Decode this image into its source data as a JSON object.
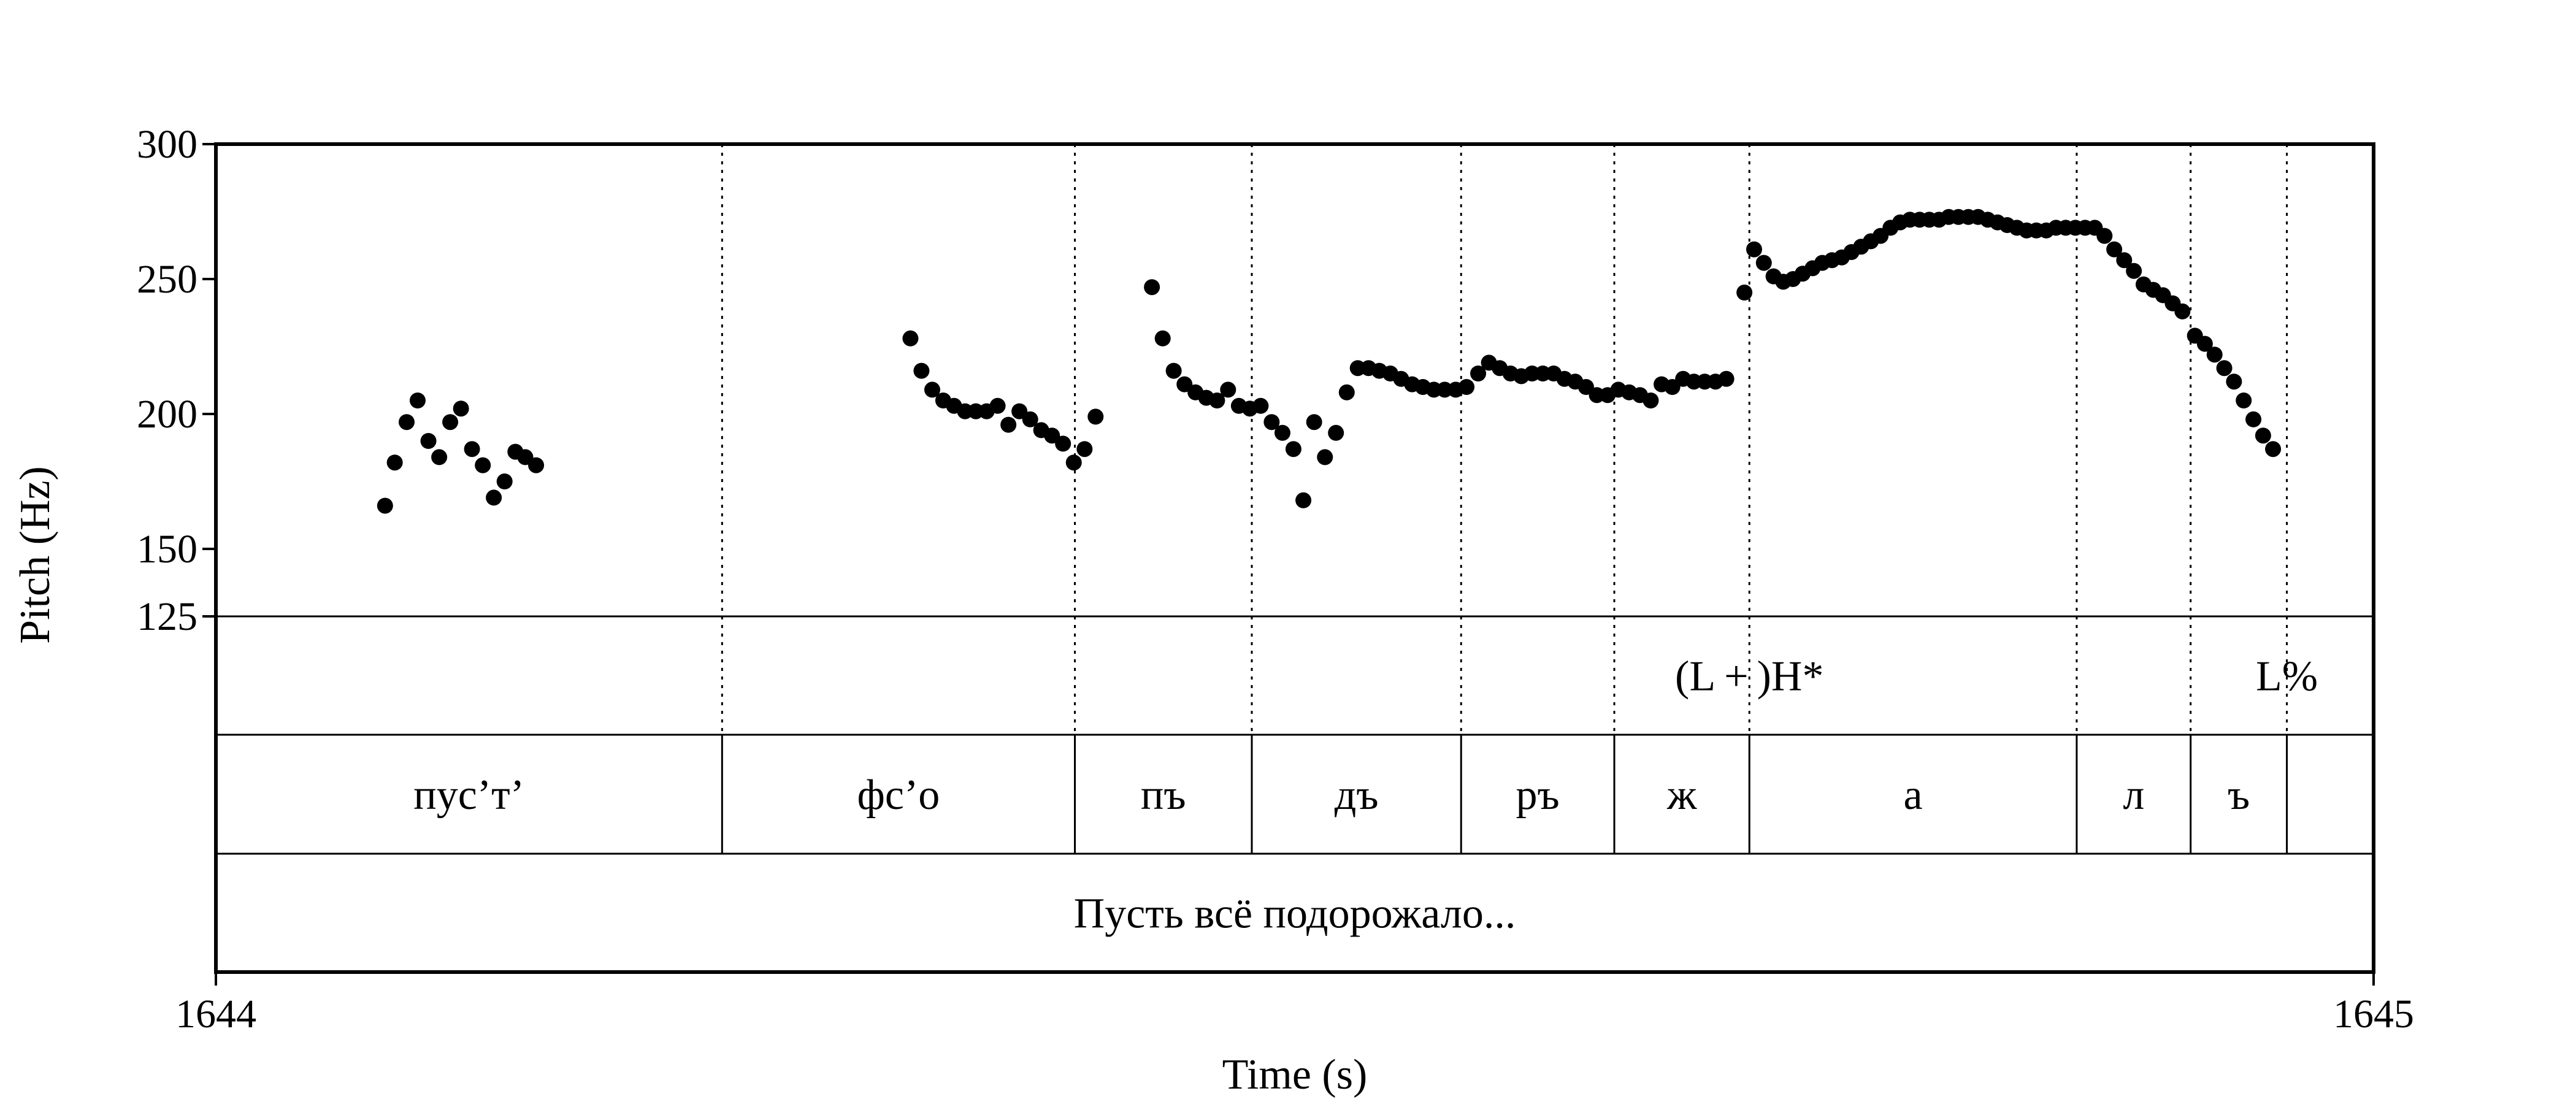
{
  "chart_data": {
    "type": "scatter",
    "title": "",
    "xlabel": "Time (s)",
    "ylabel": "Pitch (Hz)",
    "xlim": [
      1644,
      1645
    ],
    "ylim": [
      125,
      300
    ],
    "x_ticks": [
      {
        "value": 1644,
        "label": "1644"
      },
      {
        "value": 1645,
        "label": "1645"
      }
    ],
    "y_ticks": [
      {
        "value": 300,
        "label": "300"
      },
      {
        "value": 250,
        "label": "250"
      },
      {
        "value": 200,
        "label": "200"
      },
      {
        "value": 150,
        "label": "150"
      },
      {
        "value": 125,
        "label": "125"
      }
    ],
    "grid": false,
    "legend": "none",
    "boundaries": [
      1644.2346,
      1644.3981,
      1644.4801,
      1644.5771,
      1644.6481,
      1644.7107,
      1644.8624,
      1644.9152,
      1644.9598
    ],
    "series": [
      {
        "points": [
          [
            1644.0784,
            166
          ],
          [
            1644.0829,
            182
          ],
          [
            1644.0884,
            197
          ],
          [
            1644.0935,
            205
          ],
          [
            1644.0985,
            190
          ],
          [
            1644.1035,
            184
          ],
          [
            1644.1086,
            197
          ],
          [
            1644.1136,
            202
          ],
          [
            1644.1187,
            187
          ],
          [
            1644.1237,
            181
          ],
          [
            1644.1288,
            169
          ],
          [
            1644.1338,
            175
          ],
          [
            1644.1388,
            186
          ],
          [
            1644.1434,
            184
          ],
          [
            1644.1484,
            181
          ],
          [
            1644.3219,
            228
          ],
          [
            1644.327,
            216
          ],
          [
            1644.332,
            209
          ],
          [
            1644.3371,
            205
          ],
          [
            1644.3421,
            203
          ],
          [
            1644.3472,
            201
          ],
          [
            1644.3522,
            201
          ],
          [
            1644.3572,
            201
          ],
          [
            1644.3623,
            203
          ],
          [
            1644.3673,
            196
          ],
          [
            1644.3724,
            201
          ],
          [
            1644.3774,
            198
          ],
          [
            1644.3825,
            194
          ],
          [
            1644.3875,
            192
          ],
          [
            1644.3926,
            189
          ],
          [
            1644.3976,
            182
          ],
          [
            1644.4026,
            187
          ],
          [
            1644.4077,
            199
          ],
          [
            1644.4338,
            247
          ],
          [
            1644.4388,
            228
          ],
          [
            1644.4439,
            216
          ],
          [
            1644.4489,
            211
          ],
          [
            1644.454,
            208
          ],
          [
            1644.459,
            206
          ],
          [
            1644.464,
            205
          ],
          [
            1644.4691,
            209
          ],
          [
            1644.4741,
            203
          ],
          [
            1644.4792,
            202
          ],
          [
            1644.4842,
            203
          ],
          [
            1644.4893,
            197
          ],
          [
            1644.4943,
            193
          ],
          [
            1644.4994,
            187
          ],
          [
            1644.504,
            168
          ],
          [
            1644.509,
            197
          ],
          [
            1644.514,
            184
          ],
          [
            1644.5191,
            193
          ],
          [
            1644.5241,
            208
          ],
          [
            1644.5292,
            217
          ],
          [
            1644.5342,
            217
          ],
          [
            1644.5392,
            216
          ],
          [
            1644.5443,
            215
          ],
          [
            1644.5493,
            213
          ],
          [
            1644.5544,
            211
          ],
          [
            1644.5594,
            210
          ],
          [
            1644.5645,
            209
          ],
          [
            1644.5695,
            209
          ],
          [
            1644.5746,
            209
          ],
          [
            1644.5796,
            210
          ],
          [
            1644.585,
            215
          ],
          [
            1644.59,
            219
          ],
          [
            1644.595,
            217
          ],
          [
            1644.6,
            215
          ],
          [
            1644.605,
            214
          ],
          [
            1644.61,
            215
          ],
          [
            1644.615,
            215
          ],
          [
            1644.62,
            215
          ],
          [
            1644.625,
            213
          ],
          [
            1644.63,
            212
          ],
          [
            1644.635,
            210
          ],
          [
            1644.64,
            207
          ],
          [
            1644.645,
            207
          ],
          [
            1644.65,
            209
          ],
          [
            1644.655,
            208
          ],
          [
            1644.66,
            207
          ],
          [
            1644.665,
            205
          ],
          [
            1644.67,
            211
          ],
          [
            1644.675,
            210
          ],
          [
            1644.68,
            213
          ],
          [
            1644.685,
            212
          ],
          [
            1644.69,
            212
          ],
          [
            1644.695,
            212
          ],
          [
            1644.7,
            213
          ],
          [
            1644.7084,
            245
          ],
          [
            1644.7129,
            261
          ],
          [
            1644.7174,
            256
          ],
          [
            1644.7219,
            251
          ],
          [
            1644.7264,
            249
          ],
          [
            1644.7309,
            250
          ],
          [
            1644.7354,
            252
          ],
          [
            1644.74,
            254
          ],
          [
            1644.7445,
            256
          ],
          [
            1644.749,
            257
          ],
          [
            1644.7535,
            258
          ],
          [
            1644.758,
            260
          ],
          [
            1644.7625,
            262
          ],
          [
            1644.767,
            264
          ],
          [
            1644.7715,
            266
          ],
          [
            1644.7761,
            269
          ],
          [
            1644.7806,
            271
          ],
          [
            1644.7851,
            272
          ],
          [
            1644.7896,
            272
          ],
          [
            1644.7941,
            272
          ],
          [
            1644.7986,
            272
          ],
          [
            1644.8031,
            273
          ],
          [
            1644.8076,
            273
          ],
          [
            1644.8122,
            273
          ],
          [
            1644.8167,
            273
          ],
          [
            1644.8212,
            272
          ],
          [
            1644.8257,
            271
          ],
          [
            1644.8302,
            270
          ],
          [
            1644.8347,
            269
          ],
          [
            1644.8392,
            268
          ],
          [
            1644.8437,
            268
          ],
          [
            1644.8483,
            268
          ],
          [
            1644.8528,
            269
          ],
          [
            1644.8573,
            269
          ],
          [
            1644.8618,
            269
          ],
          [
            1644.8663,
            269
          ],
          [
            1644.8708,
            269
          ],
          [
            1644.8753,
            266
          ],
          [
            1644.8798,
            261
          ],
          [
            1644.8844,
            257
          ],
          [
            1644.8889,
            253
          ],
          [
            1644.8934,
            248
          ],
          [
            1644.8979,
            246
          ],
          [
            1644.9024,
            244
          ],
          [
            1644.9069,
            241
          ],
          [
            1644.9114,
            238
          ],
          [
            1644.9172,
            229
          ],
          [
            1644.9218,
            226
          ],
          [
            1644.9263,
            222
          ],
          [
            1644.9308,
            217
          ],
          [
            1644.9353,
            212
          ],
          [
            1644.9398,
            205
          ],
          [
            1644.9443,
            198
          ],
          [
            1644.9488,
            192
          ],
          [
            1644.9534,
            187
          ]
        ]
      }
    ],
    "tiers": [
      {
        "name": "tones",
        "labels": [
          {
            "text": "(L + )H*",
            "time": 1644.7107
          },
          {
            "text": "L%",
            "time": 1644.9598
          }
        ]
      },
      {
        "name": "segments",
        "intervals": [
          {
            "text": "пус’т’",
            "start": 1644.0,
            "end": 1644.2346
          },
          {
            "text": "фс’о",
            "start": 1644.2346,
            "end": 1644.3981
          },
          {
            "text": "пъ",
            "start": 1644.3981,
            "end": 1644.4801
          },
          {
            "text": "дъ",
            "start": 1644.4801,
            "end": 1644.5771
          },
          {
            "text": "ръ",
            "start": 1644.5771,
            "end": 1644.6481
          },
          {
            "text": "ж",
            "start": 1644.6481,
            "end": 1644.7107
          },
          {
            "text": "а",
            "start": 1644.7107,
            "end": 1644.8624
          },
          {
            "text": "л",
            "start": 1644.8624,
            "end": 1644.9152
          },
          {
            "text": "ъ",
            "start": 1644.9152,
            "end": 1644.9598
          },
          {
            "text": "",
            "start": 1644.9598,
            "end": 1645.0
          }
        ]
      },
      {
        "name": "sentence",
        "intervals": [
          {
            "text": "Пусть всё подорожало...",
            "start": 1644.0,
            "end": 1645.0
          }
        ]
      }
    ]
  }
}
